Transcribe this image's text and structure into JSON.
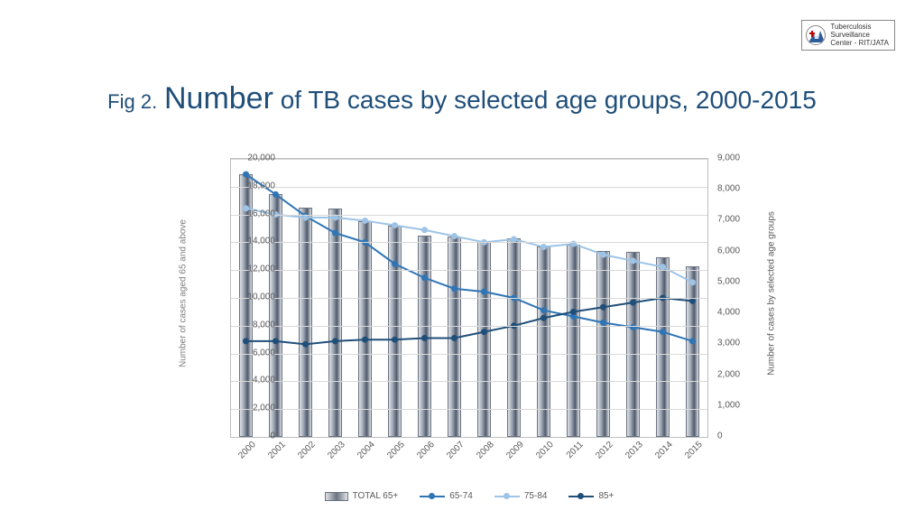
{
  "logo": {
    "line1": "Tuberculosis",
    "line2": "Surveillance",
    "line3": "Center - RIT/JATA"
  },
  "title": {
    "fig_prefix": "Fig 2.",
    "big_word": "Number",
    "rest": " of TB cases by selected age groups, 2000-2015"
  },
  "chart": {
    "type": "combo-bar-line-dual-axis",
    "categories": [
      "2000",
      "2001",
      "2002",
      "2003",
      "2004",
      "2005",
      "2006",
      "2007",
      "2008",
      "2009",
      "2010",
      "2011",
      "2012",
      "2013",
      "2014",
      "2015"
    ],
    "bars": {
      "name": "TOTAL 65+",
      "axis": "left",
      "values": [
        18900,
        17500,
        16500,
        16400,
        15500,
        15200,
        14500,
        14400,
        14000,
        14300,
        13700,
        13800,
        13400,
        13300,
        12900,
        12300
      ],
      "fill_gradient": [
        "#dfe2e7",
        "#9aa3b0",
        "#4f5a6b",
        "#dfe2e7"
      ],
      "border_color": "#6b7380",
      "bar_rel_width": 0.48
    },
    "lines": [
      {
        "name": "65-74",
        "axis": "right",
        "values": [
          8500,
          7850,
          7150,
          6600,
          6300,
          5600,
          5150,
          4800,
          4700,
          4500,
          4100,
          3900,
          3700,
          3550,
          3400,
          3100
        ],
        "color": "#2e75b6",
        "marker": "circle",
        "line_width": 2
      },
      {
        "name": "75-84",
        "axis": "right",
        "values": [
          7400,
          7200,
          7100,
          7100,
          7000,
          6850,
          6700,
          6500,
          6300,
          6400,
          6150,
          6250,
          5900,
          5700,
          5500,
          5000
        ],
        "color": "#9dc3e6",
        "marker": "circle",
        "line_width": 2
      },
      {
        "name": "85+",
        "axis": "right",
        "values": [
          3100,
          3100,
          3000,
          3100,
          3150,
          3150,
          3200,
          3200,
          3400,
          3600,
          3850,
          4050,
          4200,
          4350,
          4500,
          4400
        ],
        "color": "#1f4e79",
        "marker": "circle",
        "line_width": 2
      }
    ],
    "left_axis": {
      "label": "Number of cases aged 65 and above",
      "min": 0,
      "max": 20000,
      "step": 2000,
      "fmt_thousands": true
    },
    "right_axis": {
      "label": "Number of cases by selected age groups",
      "min": 0,
      "max": 9000,
      "step": 1000,
      "fmt_thousands": true
    },
    "background_color": "#ffffff",
    "grid_color": "#d9d9d9",
    "plot_border_color": "#bfbfbf",
    "title_color": "#1f4e79",
    "tick_font_size": 10,
    "axis_label_font_size": 10,
    "legend_font_size": 10
  }
}
